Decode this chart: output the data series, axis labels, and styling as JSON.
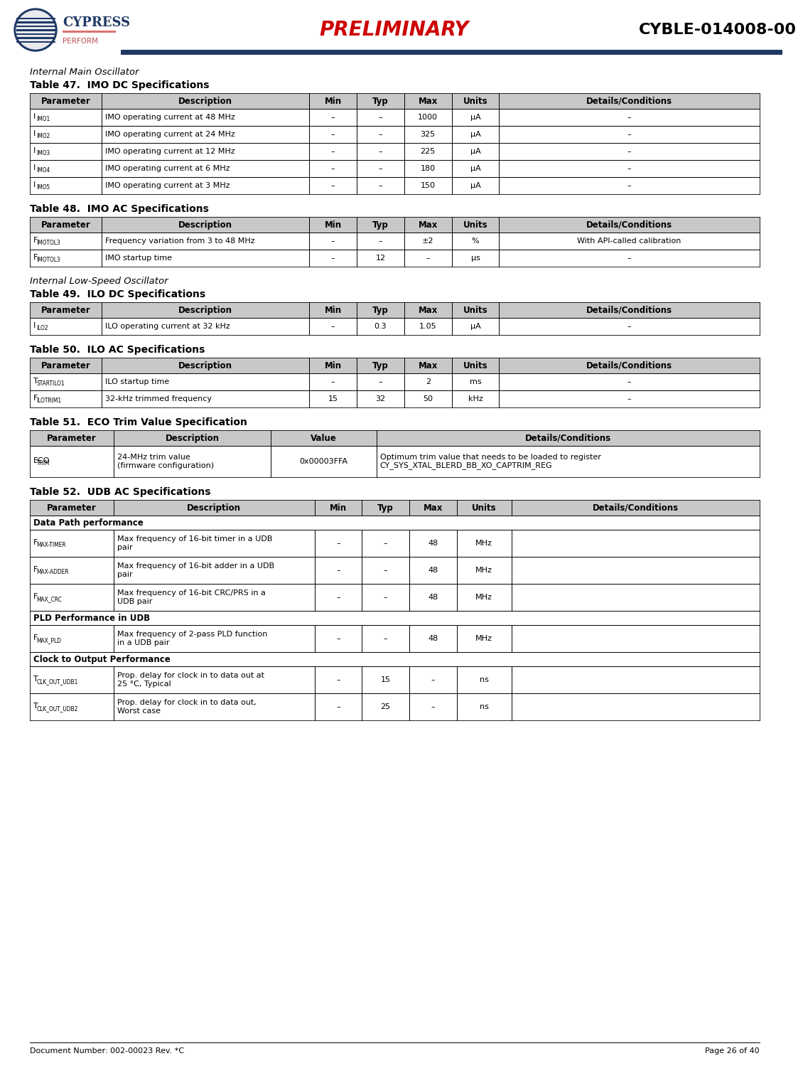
{
  "page_title_preliminary": "PRELIMINARY",
  "page_title_right": "CYBLE-014008-00",
  "doc_number": "Document Number: 002-00023 Rev. *C",
  "page_number": "Page 26 of 40",
  "header_line_color": "#1f3864",
  "section1_title": "Internal Main Oscillator",
  "table47_title": "Table 47.  IMO DC Specifications",
  "table47_headers": [
    "Parameter",
    "Description",
    "Min",
    "Typ",
    "Max",
    "Units",
    "Details/Conditions"
  ],
  "table47_rows": [
    [
      "I",
      "IMO1",
      "IMO operating current at 48 MHz",
      "–",
      "–",
      "1000",
      "μA",
      "–"
    ],
    [
      "I",
      "IMO2",
      "IMO operating current at 24 MHz",
      "–",
      "–",
      "325",
      "μA",
      "–"
    ],
    [
      "I",
      "IMO3",
      "IMO operating current at 12 MHz",
      "–",
      "–",
      "225",
      "μA",
      "–"
    ],
    [
      "I",
      "IMO4",
      "IMO operating current at 6 MHz",
      "–",
      "–",
      "180",
      "μA",
      "–"
    ],
    [
      "I",
      "IMO5",
      "IMO operating current at 3 MHz",
      "–",
      "–",
      "150",
      "μA",
      "–"
    ]
  ],
  "table48_title": "Table 48.  IMO AC Specifications",
  "table48_headers": [
    "Parameter",
    "Description",
    "Min",
    "Typ",
    "Max",
    "Units",
    "Details/Conditions"
  ],
  "table48_rows": [
    [
      "F",
      "IMOTOL3",
      "Frequency variation from 3 to 48 MHz",
      "–",
      "–",
      "±2",
      "%",
      "With API-called calibration"
    ],
    [
      "F",
      "IMOTOL3",
      "IMO startup time",
      "–",
      "12",
      "–",
      "μs",
      "–"
    ]
  ],
  "section2_title": "Internal Low-Speed Oscillator",
  "table49_title": "Table 49.  ILO DC Specifications",
  "table49_headers": [
    "Parameter",
    "Description",
    "Min",
    "Typ",
    "Max",
    "Units",
    "Details/Conditions"
  ],
  "table49_rows": [
    [
      "I",
      "ILO2",
      "ILO operating current at 32 kHz",
      "–",
      "0.3",
      "1.05",
      "μA",
      "–"
    ]
  ],
  "table50_title": "Table 50.  ILO AC Specifications",
  "table50_headers": [
    "Parameter",
    "Description",
    "Min",
    "Typ",
    "Max",
    "Units",
    "Details/Conditions"
  ],
  "table50_rows": [
    [
      "T",
      "STARTILO1",
      "ILO startup time",
      "–",
      "–",
      "2",
      "ms",
      "–"
    ],
    [
      "F",
      "ILOTRIM1",
      "32-kHz trimmed frequency",
      "15",
      "32",
      "50",
      "kHz",
      "–"
    ]
  ],
  "table51_title": "Table 51.  ECO Trim Value Specification",
  "table51_headers": [
    "Parameter",
    "Description",
    "Value",
    "Details/Conditions"
  ],
  "table51_rows": [
    [
      "ECO",
      "TRIM",
      "24-MHz trim value\n(firmware configuration)",
      "0x00003FFA",
      "Optimum trim value that needs to be loaded to register\nCY_SYS_XTAL_BLERD_BB_XO_CAPTRIM_REG"
    ]
  ],
  "table52_title": "Table 52.  UDB AC Specifications",
  "table52_headers": [
    "Parameter",
    "Description",
    "Min",
    "Typ",
    "Max",
    "Units",
    "Details/Conditions"
  ],
  "table52_section1": "Data Path performance",
  "table52_section2": "PLD Performance in UDB",
  "table52_section3": "Clock to Output Performance",
  "table52_rows": [
    [
      "F",
      "MAX-TIMER",
      "Max frequency of 16-bit timer in a UDB\npair",
      "–",
      "–",
      "48",
      "MHz",
      ""
    ],
    [
      "F",
      "MAX-ADDER",
      "Max frequency of 16-bit adder in a UDB\npair",
      "–",
      "–",
      "48",
      "MHz",
      ""
    ],
    [
      "F",
      "MAX_CRC",
      "Max frequency of 16-bit CRC/PRS in a\nUDB pair",
      "–",
      "–",
      "48",
      "MHz",
      ""
    ],
    [
      "F",
      "MAX_PLD",
      "Max frequency of 2-pass PLD function\nin a UDB pair",
      "–",
      "–",
      "48",
      "MHz",
      ""
    ],
    [
      "T",
      "CLK_OUT_UDB1",
      "Prop. delay for clock in to data out at\n25 °C, Typical",
      "–",
      "15",
      "–",
      "ns",
      ""
    ],
    [
      "T",
      "CLK_OUT_UDB2",
      "Prop. delay for clock in to data out,\nWorst case",
      "–",
      "25",
      "–",
      "ns",
      ""
    ]
  ],
  "header_bg": "#c8c8c8",
  "row_bg_white": "#ffffff",
  "border_color": "#000000",
  "table_font_size": 8.0,
  "header_font_size": 8.5
}
